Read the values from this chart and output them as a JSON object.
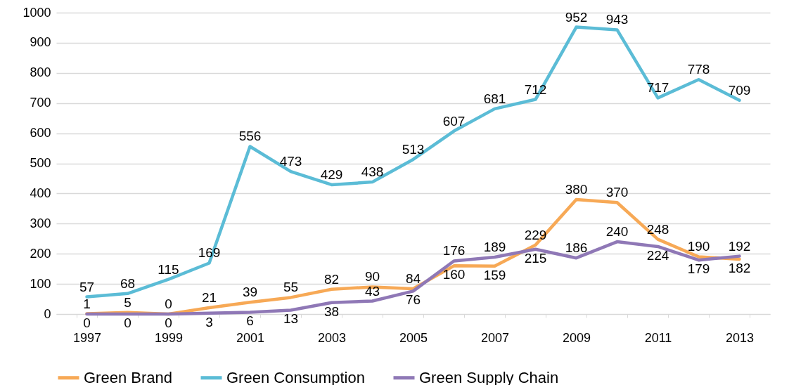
{
  "chart_data": {
    "type": "line",
    "categories": [
      "1997",
      null,
      "1999",
      null,
      "2001",
      null,
      "2003",
      null,
      "2005",
      null,
      "2007",
      null,
      "2009",
      null,
      "2011",
      null,
      "2013"
    ],
    "series": [
      {
        "name": "Green Brand",
        "color": "#f7a956",
        "values": [
          1,
          5,
          0,
          21,
          39,
          55,
          82,
          90,
          84,
          160,
          159,
          229,
          380,
          370,
          248,
          190,
          182
        ]
      },
      {
        "name": "Green Consumption",
        "color": "#5bbcd6",
        "values": [
          57,
          68,
          115,
          169,
          556,
          473,
          429,
          438,
          513,
          607,
          681,
          712,
          952,
          943,
          717,
          778,
          709
        ]
      },
      {
        "name": "Green Supply Chain",
        "color": "#8f78b6",
        "values": [
          0,
          0,
          0,
          3,
          6,
          13,
          38,
          43,
          76,
          176,
          189,
          215,
          186,
          240,
          224,
          179,
          192
        ]
      }
    ],
    "ylim": [
      0,
      1000
    ],
    "yticks": [
      0,
      100,
      200,
      300,
      400,
      500,
      600,
      700,
      800,
      900,
      1000
    ],
    "grid": "y",
    "legend": "bottom",
    "data_labels": true,
    "marker": "none",
    "line_style": "solid"
  }
}
